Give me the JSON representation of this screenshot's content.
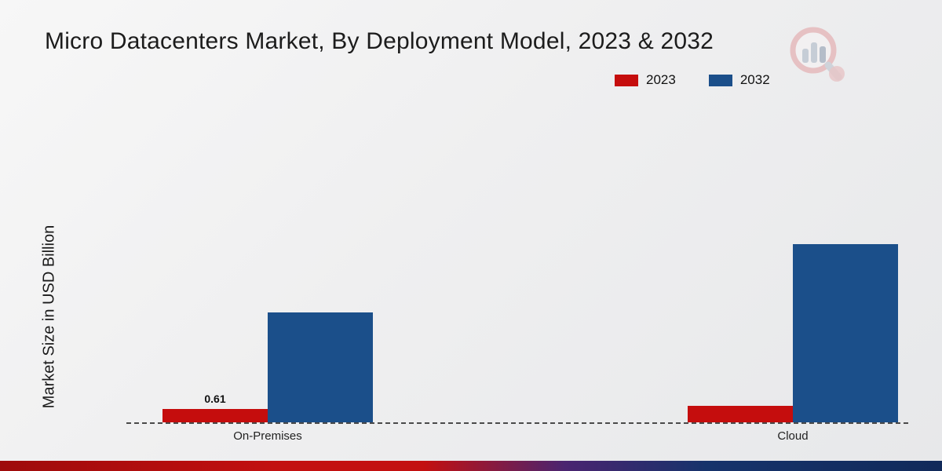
{
  "title": "Micro Datacenters Market, By Deployment Model, 2023 & 2032",
  "y_axis_label": "Market Size in USD Billion",
  "legend": {
    "items": [
      {
        "label": "2023",
        "color": "#c50d0d"
      },
      {
        "label": "2032",
        "color": "#1b4f8a"
      }
    ]
  },
  "chart_data": {
    "type": "bar",
    "title": "Micro Datacenters Market, By Deployment Model, 2023 & 2032",
    "ylabel": "Market Size in USD Billion",
    "xlabel": "",
    "categories": [
      "On-Premises",
      "Cloud"
    ],
    "series": [
      {
        "name": "2023",
        "color": "#c50d0d",
        "values": [
          0.61,
          0.75
        ]
      },
      {
        "name": "2032",
        "color": "#1b4f8a",
        "values": [
          5.0,
          8.1
        ]
      }
    ],
    "data_labels": [
      {
        "category": "On-Premises",
        "series": "2023",
        "text": "0.61"
      }
    ],
    "ylim": [
      0,
      9
    ],
    "grid": false,
    "legend_position": "top-right",
    "baseline_style": "dashed"
  },
  "colors": {
    "background_top": "#f7f7f7",
    "background_bottom": "#e7e8ea",
    "footer_left": "#c31010",
    "footer_right": "#112a5a"
  }
}
